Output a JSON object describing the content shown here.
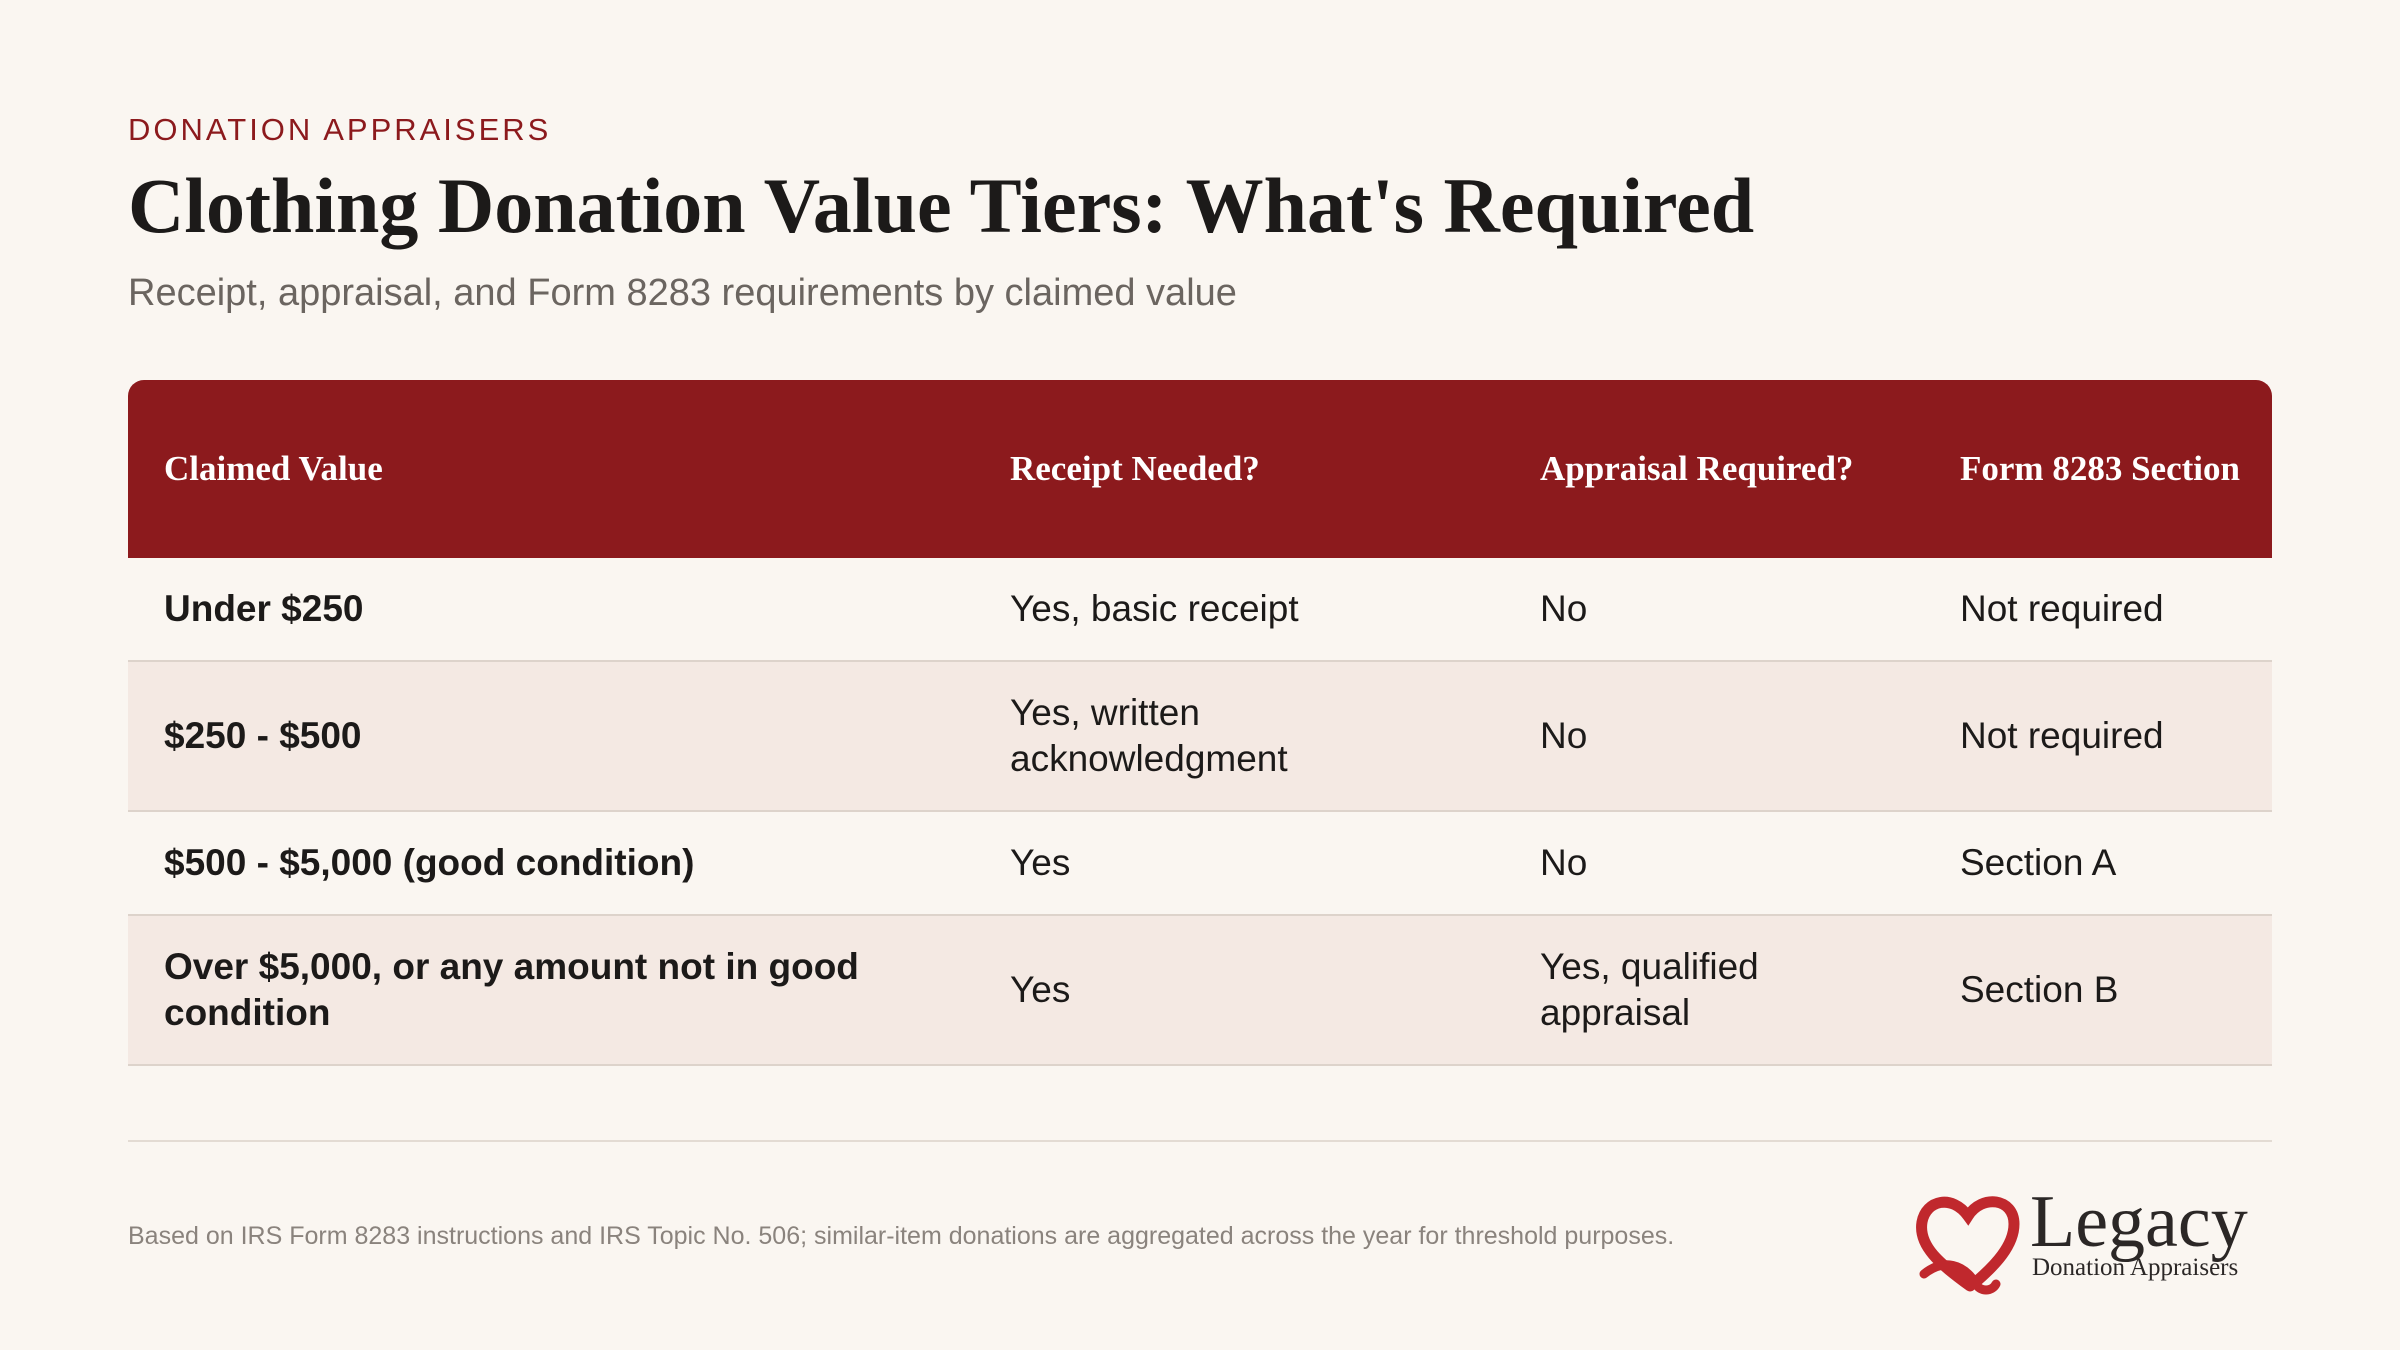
{
  "header": {
    "eyebrow": "DONATION APPRAISERS",
    "title": "Clothing Donation Value Tiers: What's Required",
    "subtitle": "Receipt, appraisal, and Form 8283 requirements by claimed value"
  },
  "table": {
    "headers": [
      "Claimed Value",
      "Receipt Needed?",
      "Appraisal Required?",
      "Form 8283 Section"
    ],
    "rows": [
      [
        "Under $250",
        "Yes, basic receipt",
        "No",
        "Not required"
      ],
      [
        "$250 - $500",
        "Yes, written acknowledgment",
        "No",
        "Not required"
      ],
      [
        "$500 - $5,000 (good condition)",
        "Yes",
        "No",
        "Section A"
      ],
      [
        "Over $5,000, or any amount not in good condition",
        "Yes",
        "Yes, qualified appraisal",
        "Section B"
      ]
    ]
  },
  "footer": {
    "note": "Based on IRS Form 8283 instructions and IRS Topic No. 506; similar-item donations are aggregated across the year for threshold purposes."
  },
  "logo": {
    "wordmark": "Legacy",
    "tagline": "Donation Appraisers",
    "icon": "heart-ribbon-icon",
    "color": "#c0282d"
  },
  "colors": {
    "accent": "#8c1a1d",
    "background": "#faf6f1",
    "alt_row": "#f4e9e3"
  }
}
